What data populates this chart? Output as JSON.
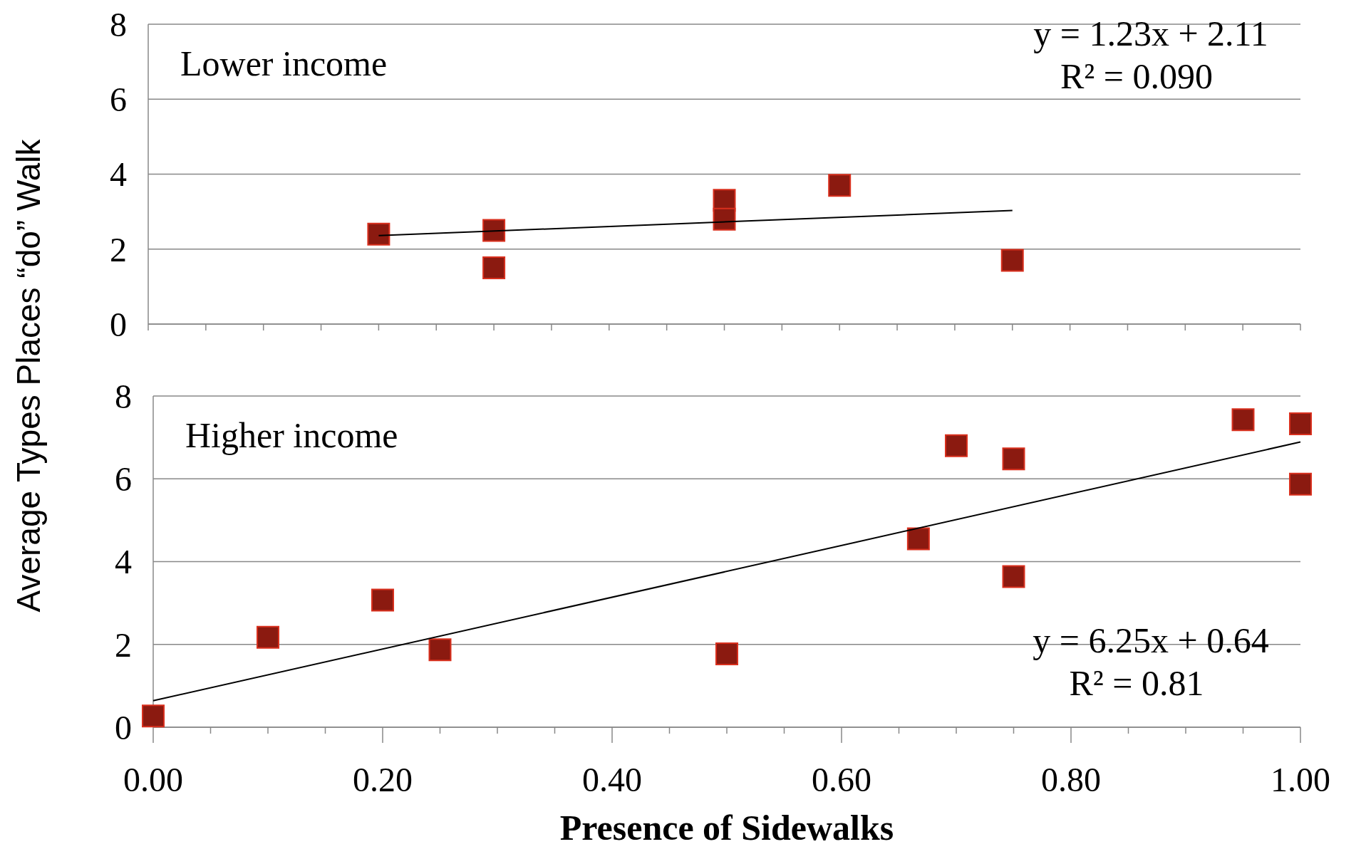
{
  "chart_data": [
    {
      "type": "scatter",
      "ylabel": "Average Types Places “do” Walk",
      "annotations": [
        "Lower income",
        "y = 1.23x + 2.11",
        "R² = 0.090"
      ],
      "series": [
        {
          "color": "#8b1a10",
          "x": [
            0.2,
            0.3,
            0.3,
            0.5,
            0.5,
            0.6,
            0.75
          ],
          "values": [
            2.4,
            2.5,
            1.5,
            3.3,
            2.8,
            3.7,
            1.7
          ]
        },
        {
          "type": "line",
          "color": "#000000",
          "marker": "none",
          "x": [
            0.2,
            0.75
          ],
          "values": [
            2.36,
            3.03
          ]
        }
      ],
      "xlim": [
        0,
        1
      ],
      "xticks": [
        {
          "value": 0,
          "label": null
        },
        {
          "value": 0.05,
          "label": null
        },
        {
          "value": 0.1,
          "label": null
        },
        {
          "value": 0.15,
          "label": null
        },
        {
          "value": 0.2,
          "label": null
        },
        {
          "value": 0.25,
          "label": null
        },
        {
          "value": 0.3,
          "label": null
        },
        {
          "value": 0.35,
          "label": null
        },
        {
          "value": 0.4,
          "label": null
        },
        {
          "value": 0.45,
          "label": null
        },
        {
          "value": 0.5,
          "label": null
        },
        {
          "value": 0.55,
          "label": null
        },
        {
          "value": 0.6,
          "label": null
        },
        {
          "value": 0.65,
          "label": null
        },
        {
          "value": 0.7,
          "label": null
        },
        {
          "value": 0.75,
          "label": null
        },
        {
          "value": 0.8,
          "label": null
        },
        {
          "value": 0.85,
          "label": null
        },
        {
          "value": 0.9,
          "label": null
        },
        {
          "value": 0.95,
          "label": null
        },
        {
          "value": 1,
          "label": null
        }
      ],
      "ylim": [
        0,
        8
      ],
      "yticks": [
        0,
        2,
        4,
        6,
        8
      ],
      "tick_labels": "y",
      "grid": "y",
      "marker": "square"
    },
    {
      "type": "scatter",
      "xlabel": "Presence of Sidewalks",
      "annotations": [
        "Higher income",
        "y = 6.25x + 0.64",
        "R² = 0.81"
      ],
      "series": [
        {
          "color": "#8b1a10",
          "x": [
            0,
            0.1,
            0.2,
            0.25,
            0.5,
            0.667,
            0.7,
            0.75,
            0.75,
            0.95,
            1,
            1
          ],
          "values": [
            0.27,
            2.17,
            3.07,
            1.87,
            1.77,
            4.55,
            6.8,
            6.48,
            3.64,
            7.43,
            7.33,
            5.87
          ]
        },
        {
          "type": "line",
          "color": "#000000",
          "marker": "none",
          "x": [
            0,
            1
          ],
          "values": [
            0.64,
            6.89
          ]
        }
      ],
      "xlim": [
        0,
        1
      ],
      "xticks": [
        {
          "value": 0,
          "label": "0.00"
        },
        {
          "value": 0.05,
          "label": null
        },
        {
          "value": 0.1,
          "label": null
        },
        {
          "value": 0.15,
          "label": null
        },
        {
          "value": 0.2,
          "label": "0.20"
        },
        {
          "value": 0.25,
          "label": null
        },
        {
          "value": 0.3,
          "label": null
        },
        {
          "value": 0.35,
          "label": null
        },
        {
          "value": 0.4,
          "label": "0.40"
        },
        {
          "value": 0.45,
          "label": null
        },
        {
          "value": 0.5,
          "label": null
        },
        {
          "value": 0.55,
          "label": null
        },
        {
          "value": 0.6,
          "label": "0.60"
        },
        {
          "value": 0.65,
          "label": null
        },
        {
          "value": 0.7,
          "label": null
        },
        {
          "value": 0.75,
          "label": null
        },
        {
          "value": 0.8,
          "label": "0.80"
        },
        {
          "value": 0.85,
          "label": null
        },
        {
          "value": 0.9,
          "label": null
        },
        {
          "value": 0.95,
          "label": null
        },
        {
          "value": 1,
          "label": "1.00"
        }
      ],
      "ylim": [
        0,
        8
      ],
      "yticks": [
        0,
        2,
        4,
        6,
        8
      ],
      "grid": "y",
      "marker": "square"
    }
  ]
}
